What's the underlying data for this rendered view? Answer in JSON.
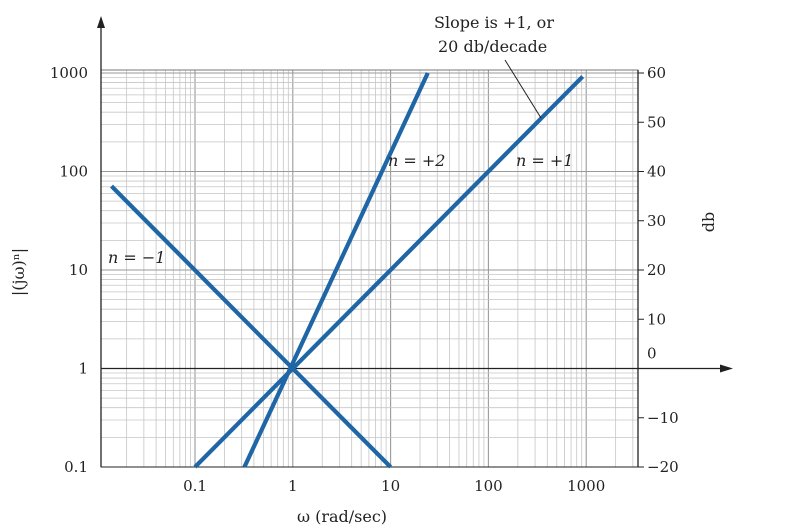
{
  "chart_data": {
    "type": "line",
    "xscale": "log",
    "yscale": "log",
    "xlim": [
      0.013,
      3000
    ],
    "ylim": [
      0.1,
      3000
    ],
    "xlabel": "ω (rad/sec)",
    "ylabel": "|(jω)ⁿ|",
    "y2label": "db",
    "x_ticks": [
      {
        "value": 0.1,
        "label": "0.1"
      },
      {
        "value": 1,
        "label": "1"
      },
      {
        "value": 10,
        "label": "10"
      },
      {
        "value": 100,
        "label": "100"
      },
      {
        "value": 1000,
        "label": "1000"
      }
    ],
    "y_ticks": [
      {
        "value": 0.1,
        "label": "0.1"
      },
      {
        "value": 1,
        "label": "1"
      },
      {
        "value": 10,
        "label": "10"
      },
      {
        "value": 100,
        "label": "100"
      },
      {
        "value": 1000,
        "label": "1000"
      }
    ],
    "y2_ticks": [
      {
        "value": -20,
        "label": "−20"
      },
      {
        "value": -10,
        "label": "−10"
      },
      {
        "value": 0,
        "label": "0"
      },
      {
        "value": 10,
        "label": "10"
      },
      {
        "value": 20,
        "label": "20"
      },
      {
        "value": 30,
        "label": "30"
      },
      {
        "value": 40,
        "label": "40"
      },
      {
        "value": 50,
        "label": "50"
      },
      {
        "value": 60,
        "label": "60"
      }
    ],
    "series": [
      {
        "label": "n = −1",
        "n": -1,
        "x": [
          0.014,
          10
        ],
        "y": [
          71,
          0.1
        ]
      },
      {
        "label": "n = +2",
        "n": 2,
        "x": [
          0.32,
          24
        ],
        "y": [
          0.1,
          1000
        ]
      },
      {
        "label": "n = +1",
        "n": 1,
        "x": [
          0.1,
          920
        ],
        "y": [
          0.1,
          920
        ]
      }
    ],
    "annotations": [
      {
        "line1": "Slope is +1, or",
        "line2": "20 db/decade"
      }
    ],
    "grid": true,
    "line_color": "#1f66a6"
  }
}
